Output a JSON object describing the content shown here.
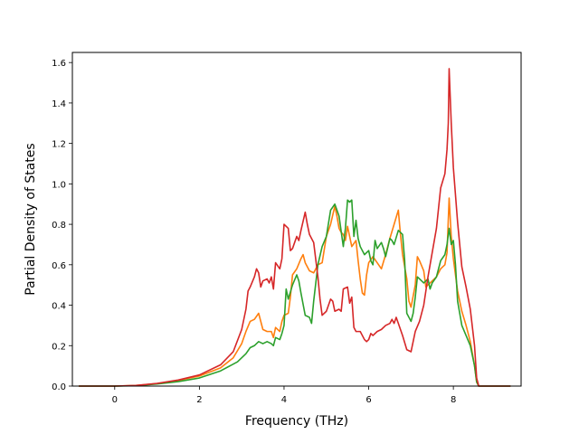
{
  "chart_data": {
    "type": "line",
    "title": "",
    "xlabel": "Frequency (THz)",
    "ylabel": "Partial Density of States",
    "xlim": [
      -1.0,
      9.6
    ],
    "ylim": [
      0.0,
      1.65
    ],
    "x_ticks": [
      0,
      2,
      4,
      6,
      8
    ],
    "y_ticks": [
      0.0,
      0.2,
      0.4,
      0.6,
      0.8,
      1.0,
      1.2,
      1.4,
      1.6
    ],
    "x_tick_labels": [
      "0",
      "2",
      "4",
      "6",
      "8"
    ],
    "y_tick_labels": [
      "0.0",
      "0.2",
      "0.4",
      "0.6",
      "0.8",
      "1.0",
      "1.2",
      "1.4",
      "1.6"
    ],
    "grid": false,
    "legend": "none",
    "series": [
      {
        "color": "#ff7f0e",
        "points": [
          [
            -0.85,
            0
          ],
          [
            0,
            0
          ],
          [
            0.5,
            0.003
          ],
          [
            1,
            0.012
          ],
          [
            1.5,
            0.028
          ],
          [
            2,
            0.05
          ],
          [
            2.5,
            0.09
          ],
          [
            2.8,
            0.14
          ],
          [
            3.0,
            0.21
          ],
          [
            3.1,
            0.27
          ],
          [
            3.2,
            0.32
          ],
          [
            3.3,
            0.33
          ],
          [
            3.4,
            0.36
          ],
          [
            3.5,
            0.28
          ],
          [
            3.6,
            0.27
          ],
          [
            3.7,
            0.27
          ],
          [
            3.75,
            0.24
          ],
          [
            3.8,
            0.29
          ],
          [
            3.9,
            0.27
          ],
          [
            3.95,
            0.32
          ],
          [
            4.0,
            0.35
          ],
          [
            4.1,
            0.36
          ],
          [
            4.15,
            0.44
          ],
          [
            4.2,
            0.55
          ],
          [
            4.3,
            0.58
          ],
          [
            4.4,
            0.63
          ],
          [
            4.45,
            0.65
          ],
          [
            4.5,
            0.61
          ],
          [
            4.6,
            0.57
          ],
          [
            4.7,
            0.56
          ],
          [
            4.8,
            0.6
          ],
          [
            4.9,
            0.61
          ],
          [
            5.0,
            0.74
          ],
          [
            5.1,
            0.8
          ],
          [
            5.2,
            0.89
          ],
          [
            5.25,
            0.84
          ],
          [
            5.3,
            0.78
          ],
          [
            5.35,
            0.76
          ],
          [
            5.4,
            0.75
          ],
          [
            5.45,
            0.72
          ],
          [
            5.5,
            0.79
          ],
          [
            5.6,
            0.69
          ],
          [
            5.7,
            0.72
          ],
          [
            5.75,
            0.62
          ],
          [
            5.8,
            0.53
          ],
          [
            5.85,
            0.46
          ],
          [
            5.9,
            0.45
          ],
          [
            5.95,
            0.55
          ],
          [
            6.0,
            0.61
          ],
          [
            6.1,
            0.64
          ],
          [
            6.2,
            0.61
          ],
          [
            6.3,
            0.58
          ],
          [
            6.4,
            0.65
          ],
          [
            6.5,
            0.73
          ],
          [
            6.6,
            0.8
          ],
          [
            6.7,
            0.87
          ],
          [
            6.75,
            0.75
          ],
          [
            6.8,
            0.65
          ],
          [
            6.9,
            0.53
          ],
          [
            6.95,
            0.42
          ],
          [
            7.0,
            0.39
          ],
          [
            7.1,
            0.5
          ],
          [
            7.15,
            0.64
          ],
          [
            7.2,
            0.62
          ],
          [
            7.3,
            0.57
          ],
          [
            7.35,
            0.49
          ],
          [
            7.4,
            0.5
          ],
          [
            7.5,
            0.52
          ],
          [
            7.6,
            0.54
          ],
          [
            7.65,
            0.56
          ],
          [
            7.7,
            0.58
          ],
          [
            7.8,
            0.6
          ],
          [
            7.85,
            0.66
          ],
          [
            7.9,
            0.93
          ],
          [
            7.95,
            0.74
          ],
          [
            8.0,
            0.63
          ],
          [
            8.1,
            0.47
          ],
          [
            8.2,
            0.37
          ],
          [
            8.3,
            0.3
          ],
          [
            8.4,
            0.22
          ],
          [
            8.5,
            0.1
          ],
          [
            8.55,
            0.02
          ],
          [
            8.6,
            0
          ],
          [
            9.35,
            0
          ]
        ]
      },
      {
        "color": "#2ca02c",
        "points": [
          [
            -0.85,
            0
          ],
          [
            0,
            0
          ],
          [
            0.5,
            0.002
          ],
          [
            1,
            0.01
          ],
          [
            1.5,
            0.022
          ],
          [
            2,
            0.04
          ],
          [
            2.5,
            0.075
          ],
          [
            2.9,
            0.12
          ],
          [
            3.1,
            0.16
          ],
          [
            3.2,
            0.19
          ],
          [
            3.3,
            0.2
          ],
          [
            3.4,
            0.22
          ],
          [
            3.5,
            0.21
          ],
          [
            3.6,
            0.22
          ],
          [
            3.7,
            0.21
          ],
          [
            3.75,
            0.2
          ],
          [
            3.8,
            0.24
          ],
          [
            3.9,
            0.23
          ],
          [
            3.95,
            0.26
          ],
          [
            4.0,
            0.3
          ],
          [
            4.05,
            0.48
          ],
          [
            4.1,
            0.43
          ],
          [
            4.2,
            0.5
          ],
          [
            4.3,
            0.55
          ],
          [
            4.35,
            0.52
          ],
          [
            4.4,
            0.46
          ],
          [
            4.5,
            0.35
          ],
          [
            4.6,
            0.34
          ],
          [
            4.65,
            0.31
          ],
          [
            4.7,
            0.42
          ],
          [
            4.8,
            0.6
          ],
          [
            4.9,
            0.69
          ],
          [
            5.0,
            0.74
          ],
          [
            5.1,
            0.87
          ],
          [
            5.2,
            0.9
          ],
          [
            5.3,
            0.84
          ],
          [
            5.4,
            0.69
          ],
          [
            5.45,
            0.78
          ],
          [
            5.5,
            0.92
          ],
          [
            5.55,
            0.91
          ],
          [
            5.6,
            0.92
          ],
          [
            5.65,
            0.74
          ],
          [
            5.7,
            0.82
          ],
          [
            5.75,
            0.73
          ],
          [
            5.8,
            0.69
          ],
          [
            5.9,
            0.65
          ],
          [
            6.0,
            0.67
          ],
          [
            6.05,
            0.62
          ],
          [
            6.1,
            0.6
          ],
          [
            6.15,
            0.72
          ],
          [
            6.2,
            0.68
          ],
          [
            6.3,
            0.71
          ],
          [
            6.35,
            0.68
          ],
          [
            6.4,
            0.64
          ],
          [
            6.5,
            0.73
          ],
          [
            6.55,
            0.72
          ],
          [
            6.6,
            0.7
          ],
          [
            6.7,
            0.77
          ],
          [
            6.8,
            0.75
          ],
          [
            6.85,
            0.62
          ],
          [
            6.9,
            0.36
          ],
          [
            7.0,
            0.32
          ],
          [
            7.05,
            0.36
          ],
          [
            7.1,
            0.44
          ],
          [
            7.15,
            0.54
          ],
          [
            7.2,
            0.53
          ],
          [
            7.3,
            0.51
          ],
          [
            7.4,
            0.53
          ],
          [
            7.45,
            0.48
          ],
          [
            7.5,
            0.51
          ],
          [
            7.6,
            0.54
          ],
          [
            7.7,
            0.62
          ],
          [
            7.8,
            0.65
          ],
          [
            7.85,
            0.7
          ],
          [
            7.9,
            0.78
          ],
          [
            7.95,
            0.7
          ],
          [
            8.0,
            0.72
          ],
          [
            8.05,
            0.6
          ],
          [
            8.1,
            0.42
          ],
          [
            8.2,
            0.3
          ],
          [
            8.3,
            0.25
          ],
          [
            8.4,
            0.2
          ],
          [
            8.5,
            0.1
          ],
          [
            8.55,
            0.02
          ],
          [
            8.6,
            0
          ],
          [
            9.35,
            0
          ]
        ]
      },
      {
        "color": "#d62728",
        "points": [
          [
            -0.85,
            0
          ],
          [
            0,
            0
          ],
          [
            0.5,
            0.003
          ],
          [
            1,
            0.013
          ],
          [
            1.5,
            0.03
          ],
          [
            2,
            0.055
          ],
          [
            2.5,
            0.105
          ],
          [
            2.8,
            0.17
          ],
          [
            3.0,
            0.28
          ],
          [
            3.1,
            0.38
          ],
          [
            3.15,
            0.47
          ],
          [
            3.2,
            0.49
          ],
          [
            3.3,
            0.54
          ],
          [
            3.35,
            0.58
          ],
          [
            3.4,
            0.56
          ],
          [
            3.45,
            0.49
          ],
          [
            3.5,
            0.52
          ],
          [
            3.6,
            0.53
          ],
          [
            3.65,
            0.51
          ],
          [
            3.7,
            0.54
          ],
          [
            3.75,
            0.48
          ],
          [
            3.8,
            0.61
          ],
          [
            3.9,
            0.58
          ],
          [
            3.95,
            0.63
          ],
          [
            4.0,
            0.8
          ],
          [
            4.1,
            0.78
          ],
          [
            4.15,
            0.67
          ],
          [
            4.2,
            0.68
          ],
          [
            4.3,
            0.74
          ],
          [
            4.35,
            0.72
          ],
          [
            4.4,
            0.77
          ],
          [
            4.5,
            0.86
          ],
          [
            4.55,
            0.8
          ],
          [
            4.6,
            0.75
          ],
          [
            4.7,
            0.71
          ],
          [
            4.8,
            0.54
          ],
          [
            4.85,
            0.43
          ],
          [
            4.9,
            0.35
          ],
          [
            5.0,
            0.37
          ],
          [
            5.1,
            0.43
          ],
          [
            5.15,
            0.42
          ],
          [
            5.2,
            0.37
          ],
          [
            5.3,
            0.38
          ],
          [
            5.35,
            0.37
          ],
          [
            5.4,
            0.48
          ],
          [
            5.5,
            0.49
          ],
          [
            5.55,
            0.41
          ],
          [
            5.6,
            0.44
          ],
          [
            5.65,
            0.29
          ],
          [
            5.7,
            0.27
          ],
          [
            5.8,
            0.27
          ],
          [
            5.9,
            0.23
          ],
          [
            5.95,
            0.22
          ],
          [
            6.0,
            0.23
          ],
          [
            6.05,
            0.26
          ],
          [
            6.1,
            0.25
          ],
          [
            6.2,
            0.27
          ],
          [
            6.3,
            0.28
          ],
          [
            6.4,
            0.3
          ],
          [
            6.5,
            0.31
          ],
          [
            6.55,
            0.33
          ],
          [
            6.6,
            0.31
          ],
          [
            6.65,
            0.34
          ],
          [
            6.7,
            0.31
          ],
          [
            6.8,
            0.25
          ],
          [
            6.9,
            0.18
          ],
          [
            7.0,
            0.17
          ],
          [
            7.1,
            0.27
          ],
          [
            7.2,
            0.32
          ],
          [
            7.3,
            0.4
          ],
          [
            7.4,
            0.54
          ],
          [
            7.5,
            0.66
          ],
          [
            7.6,
            0.78
          ],
          [
            7.7,
            0.98
          ],
          [
            7.8,
            1.05
          ],
          [
            7.85,
            1.17
          ],
          [
            7.88,
            1.3
          ],
          [
            7.9,
            1.57
          ],
          [
            7.95,
            1.3
          ],
          [
            8.0,
            1.08
          ],
          [
            8.1,
            0.81
          ],
          [
            8.2,
            0.59
          ],
          [
            8.3,
            0.49
          ],
          [
            8.4,
            0.38
          ],
          [
            8.5,
            0.2
          ],
          [
            8.55,
            0.04
          ],
          [
            8.6,
            0
          ],
          [
            9.35,
            0
          ]
        ]
      }
    ]
  }
}
